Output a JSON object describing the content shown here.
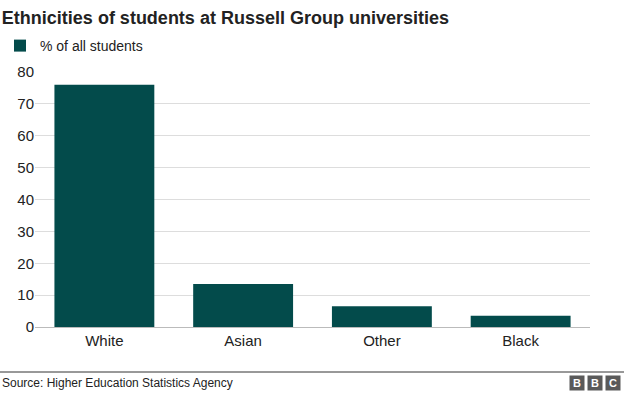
{
  "chart_data": {
    "type": "bar",
    "title": "Ethnicities of students at Russell Group universities",
    "categories": [
      "White",
      "Asian",
      "Other",
      "Black"
    ],
    "series": [
      {
        "name": "% of all students",
        "color": "#034b4b",
        "values": [
          76,
          13.5,
          6.5,
          3.5
        ]
      }
    ],
    "ylim": [
      0,
      80
    ],
    "yticks": [
      0,
      10,
      20,
      30,
      40,
      50,
      60,
      70,
      80
    ],
    "grid": true,
    "legend": "top left",
    "source": "Source: Higher Education Statistics Agency",
    "logo": "BBC"
  }
}
